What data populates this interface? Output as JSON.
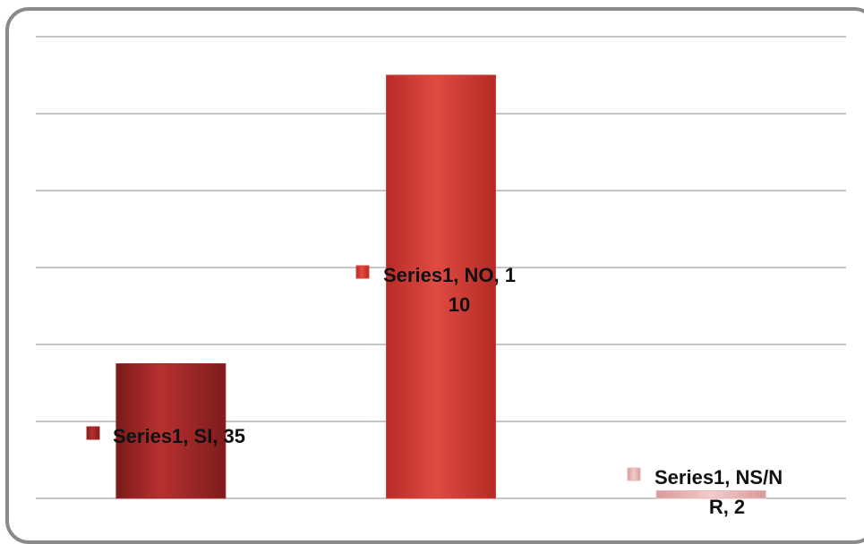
{
  "chart_data": {
    "type": "bar",
    "title": "",
    "xlabel": "",
    "ylabel": "",
    "ylim": [
      0,
      120
    ],
    "grid": true,
    "legend": "none",
    "series": [
      {
        "name": "Series1",
        "values": [
          35,
          110,
          2
        ]
      }
    ],
    "categories": [
      "SI",
      "NO",
      "NS/NR"
    ],
    "bar_colors": [
      "#a52a2a",
      "#d9403a",
      "#e8b4b4"
    ],
    "data_labels": [
      {
        "lines": [
          "Series1, SI, 35"
        ]
      },
      {
        "lines": [
          "Series1, NO, 1",
          "10"
        ]
      },
      {
        "lines": [
          "Series1, NS/N",
          "R, 2"
        ]
      }
    ]
  }
}
